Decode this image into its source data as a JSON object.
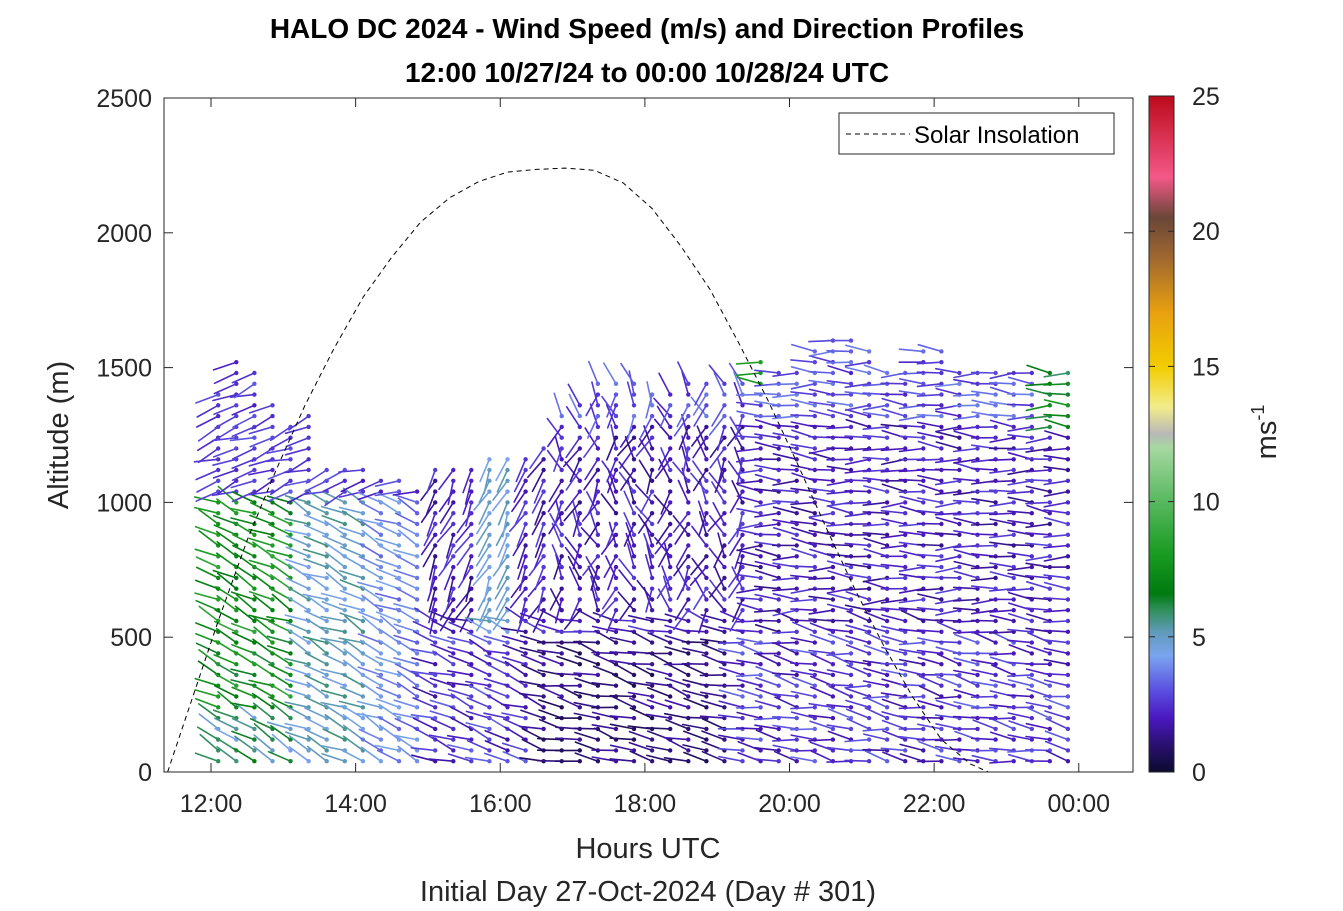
{
  "chart_data": {
    "type": "wind-barb-profile",
    "title_line1": "HALO DC 2024 - Wind Speed (m/s) and Direction Profiles",
    "title_line2": "12:00 10/27/24 to 00:00 10/28/24  UTC",
    "xlabel": "Hours UTC",
    "subtitle": "Initial Day 27-Oct-2024 (Day # 301)",
    "ylabel": "Altitude (m)",
    "colorbar_label": "ms",
    "colorbar_label_sup": "-1",
    "xlim": [
      11.35,
      24.75
    ],
    "ylim": [
      0,
      2500
    ],
    "x_ticks": [
      {
        "value": 12,
        "label": "12:00"
      },
      {
        "value": 14,
        "label": "14:00"
      },
      {
        "value": 16,
        "label": "16:00"
      },
      {
        "value": 18,
        "label": "18:00"
      },
      {
        "value": 20,
        "label": "20:00"
      },
      {
        "value": 22,
        "label": "22:00"
      },
      {
        "value": 24,
        "label": "00:00"
      }
    ],
    "y_ticks": [
      {
        "value": 0,
        "label": "0"
      },
      {
        "value": 500,
        "label": "500"
      },
      {
        "value": 1000,
        "label": "1000"
      },
      {
        "value": 1500,
        "label": "1500"
      },
      {
        "value": 2000,
        "label": "2000"
      },
      {
        "value": 2500,
        "label": "2500"
      }
    ],
    "colorbar_ticks": [
      {
        "value": 0,
        "label": "0"
      },
      {
        "value": 5,
        "label": "5"
      },
      {
        "value": 10,
        "label": "10"
      },
      {
        "value": 15,
        "label": "15"
      },
      {
        "value": 20,
        "label": "20"
      },
      {
        "value": 25,
        "label": "25"
      }
    ],
    "colorbar_range": [
      0,
      25
    ],
    "colormap": [
      {
        "v": 0,
        "c": "#0b0b2e"
      },
      {
        "v": 1,
        "c": "#2a1070"
      },
      {
        "v": 2,
        "c": "#4a18c0"
      },
      {
        "v": 3,
        "c": "#5a4ee0"
      },
      {
        "v": 4.3,
        "c": "#7aa4ef"
      },
      {
        "v": 5.2,
        "c": "#5f9ab8"
      },
      {
        "v": 6,
        "c": "#2f8f5a"
      },
      {
        "v": 6.6,
        "c": "#007a10"
      },
      {
        "v": 8,
        "c": "#189a20"
      },
      {
        "v": 10,
        "c": "#58b860"
      },
      {
        "v": 12,
        "c": "#a6d8a0"
      },
      {
        "v": 12.5,
        "c": "#b8b8b8"
      },
      {
        "v": 13.5,
        "c": "#f2ec8a"
      },
      {
        "v": 15,
        "c": "#f2cc00"
      },
      {
        "v": 17,
        "c": "#e8a010"
      },
      {
        "v": 19,
        "c": "#a06830"
      },
      {
        "v": 20.5,
        "c": "#6a4638"
      },
      {
        "v": 22,
        "c": "#f45888"
      },
      {
        "v": 25,
        "c": "#bc0a1a"
      }
    ],
    "legend": {
      "entries": [
        "Solar Insolation"
      ],
      "location": "top-right"
    },
    "solar_insolation": {
      "x": [
        11.4,
        11.75,
        12.1,
        12.5,
        12.9,
        13.3,
        13.7,
        14.1,
        14.5,
        14.9,
        15.3,
        15.7,
        16.1,
        16.5,
        16.9,
        17.3,
        17.7,
        18.1,
        18.5,
        18.9,
        19.3,
        19.7,
        20.1,
        20.5,
        20.9,
        21.3,
        21.7,
        22.1,
        22.5,
        22.75,
        24.75
      ],
      "y": [
        0,
        280,
        560,
        860,
        1120,
        1360,
        1570,
        1760,
        1910,
        2040,
        2130,
        2190,
        2225,
        2235,
        2240,
        2232,
        2185,
        2090,
        1950,
        1790,
        1590,
        1380,
        1150,
        910,
        680,
        470,
        280,
        120,
        30,
        0,
        0
      ]
    },
    "wind_profiles": {
      "description_note": "",
      "times": [
        12.1,
        12.35,
        12.6,
        12.85,
        13.1,
        13.35,
        13.6,
        13.85,
        14.1,
        14.35,
        14.6,
        14.85,
        15.1,
        15.35,
        15.6,
        15.85,
        16.1,
        16.35,
        16.6,
        16.85,
        17.1,
        17.35,
        17.6,
        17.85,
        18.1,
        18.35,
        18.6,
        18.85,
        19.1,
        19.35,
        19.6,
        19.85,
        20.1,
        20.35,
        20.6,
        20.85,
        21.1,
        21.35,
        21.6,
        21.85,
        22.1,
        22.35,
        22.6,
        22.85,
        23.1,
        23.35,
        23.6,
        23.85
      ],
      "top_altitudes": [
        1400,
        1530,
        1500,
        1380,
        1300,
        1330,
        1150,
        1130,
        1120,
        1110,
        1080,
        1060,
        1150,
        1140,
        1130,
        1160,
        1180,
        1190,
        1230,
        1340,
        1380,
        1440,
        1460,
        1460,
        1420,
        1430,
        1440,
        1450,
        1460,
        1470,
        1550,
        1480,
        1500,
        1580,
        1600,
        1620,
        1560,
        1500,
        1510,
        1560,
        1560,
        1500,
        1500,
        1500,
        1490,
        1510,
        1480,
        1480
      ],
      "altitude_step": 40,
      "bottom_altitude": 40
    }
  }
}
